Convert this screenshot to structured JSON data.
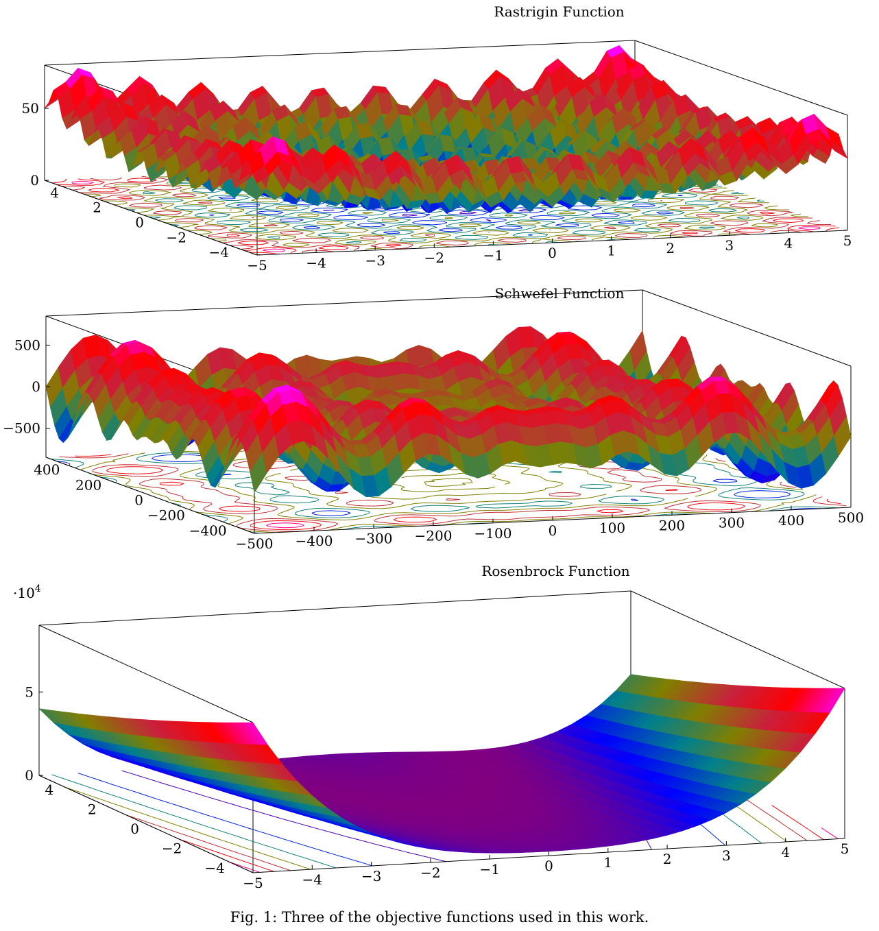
{
  "caption": "Fig. 1: Three of the objective functions used in this work.",
  "colors": {
    "colormap": [
      "#800080",
      "#0000ff",
      "#00808c",
      "#808000",
      "#c8203c",
      "#ff0000",
      "#ff00ff"
    ]
  },
  "chart_data": [
    {
      "type": "surface",
      "function": "rastrigin",
      "title": "Rastrigin Function",
      "xlim": [
        -5,
        5
      ],
      "ylim": [
        -5,
        5
      ],
      "zlim": [
        0,
        80
      ],
      "x_ticks": [
        "−5",
        "−4",
        "−3",
        "−2",
        "−1",
        "0",
        "1",
        "2",
        "3",
        "4",
        "5"
      ],
      "x_tick_values": [
        -5,
        -4,
        -3,
        -2,
        -1,
        0,
        1,
        2,
        3,
        4,
        5
      ],
      "y_ticks": [
        "−4",
        "−2",
        "0",
        "2",
        "4"
      ],
      "y_tick_values": [
        -4,
        -2,
        0,
        2,
        4
      ],
      "z_ticks": [
        "0",
        "50"
      ],
      "z_tick_values": [
        0,
        50
      ],
      "z_multiplier": "",
      "contour": true,
      "colormap": "hsv-like"
    },
    {
      "type": "surface",
      "function": "schwefel",
      "title": "Schwefel Function",
      "xlim": [
        -500,
        500
      ],
      "ylim": [
        -500,
        500
      ],
      "zlim": [
        -850,
        850
      ],
      "x_ticks": [
        "−500",
        "−400",
        "−300",
        "−200",
        "−100",
        "0",
        "100",
        "200",
        "300",
        "400",
        "500"
      ],
      "x_tick_values": [
        -500,
        -400,
        -300,
        -200,
        -100,
        0,
        100,
        200,
        300,
        400,
        500
      ],
      "y_ticks": [
        "−400",
        "−200",
        "0",
        "200",
        "400"
      ],
      "y_tick_values": [
        -400,
        -200,
        0,
        200,
        400
      ],
      "z_ticks": [
        "−500",
        "0",
        "500"
      ],
      "z_tick_values": [
        -500,
        0,
        500
      ],
      "z_multiplier": "",
      "contour": true,
      "colormap": "hsv-like"
    },
    {
      "type": "surface",
      "function": "rosenbrock",
      "title": "Rosenbrock Function",
      "xlim": [
        -5,
        5
      ],
      "ylim": [
        -5,
        5
      ],
      "zlim": [
        0,
        9
      ],
      "x_ticks": [
        "−5",
        "−4",
        "−3",
        "−2",
        "−1",
        "0",
        "1",
        "2",
        "3",
        "4",
        "5"
      ],
      "x_tick_values": [
        -5,
        -4,
        -3,
        -2,
        -1,
        0,
        1,
        2,
        3,
        4,
        5
      ],
      "y_ticks": [
        "−4",
        "−2",
        "0",
        "2",
        "4"
      ],
      "y_tick_values": [
        -4,
        -2,
        0,
        2,
        4
      ],
      "z_ticks": [
        "0",
        "5"
      ],
      "z_tick_values": [
        0,
        5
      ],
      "z_multiplier": "·10",
      "z_multiplier_exp": "4",
      "contour": true,
      "colormap": "hsv-like"
    }
  ]
}
